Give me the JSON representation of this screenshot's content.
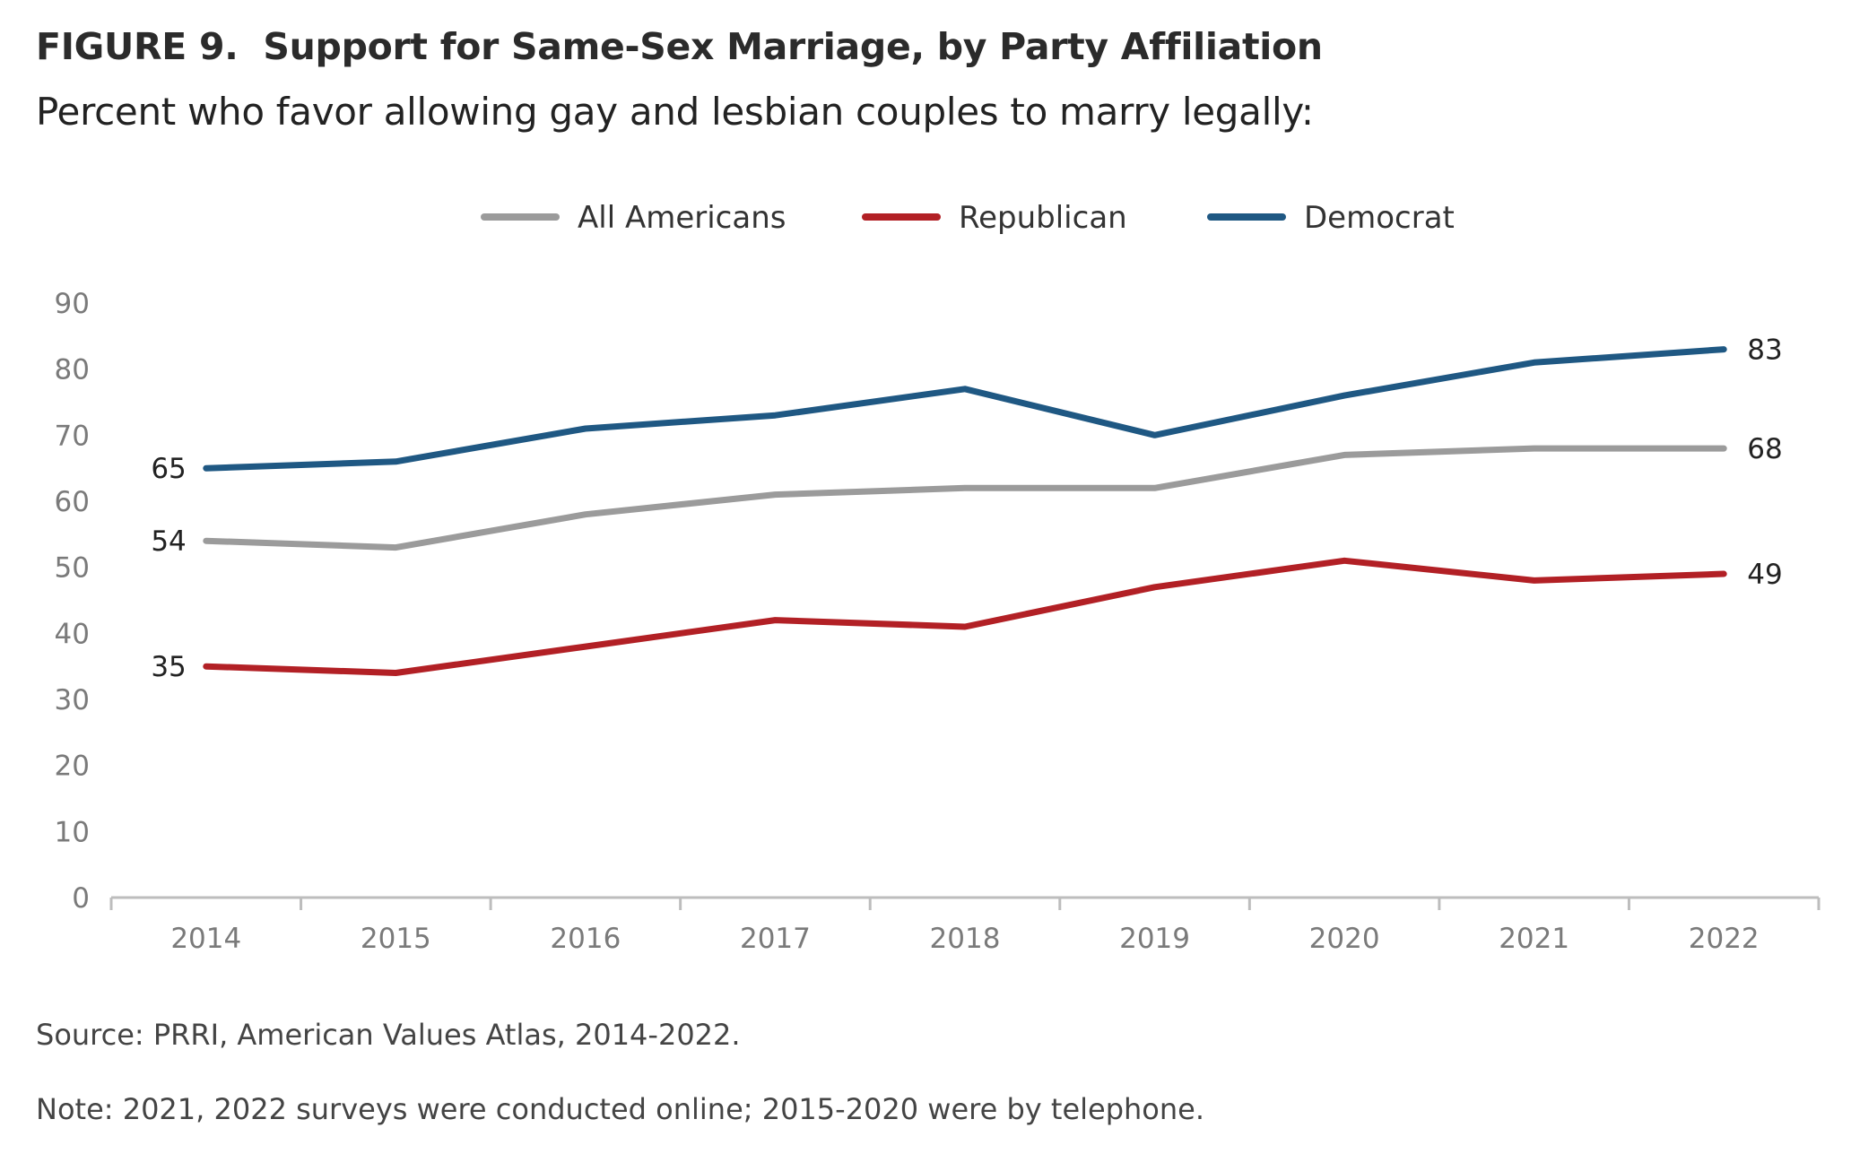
{
  "header": {
    "figure_label": "FIGURE 9.",
    "title": "Support for Same-Sex Marriage, by Party Affiliation",
    "subtitle": "Percent who favor allowing gay and lesbian couples to marry legally:"
  },
  "footer": {
    "source": "Source: PRRI, American Values Atlas, 2014-2022.",
    "note": "Note: 2021, 2022 surveys were conducted online; 2015-2020 were by telephone."
  },
  "chart_data": {
    "type": "line",
    "x": [
      "2014",
      "2015",
      "2016",
      "2017",
      "2018",
      "2019",
      "2020",
      "2021",
      "2022"
    ],
    "ylim": [
      0,
      90
    ],
    "yticks": [
      "0",
      "10",
      "20",
      "30",
      "40",
      "50",
      "60",
      "70",
      "80",
      "90"
    ],
    "grid": false,
    "legend_placement": "top-center",
    "series": [
      {
        "name": "All Americans",
        "color": "#9b9b9b",
        "values": [
          54,
          53,
          58,
          61,
          62,
          62,
          67,
          68,
          68
        ],
        "start_label": "54",
        "end_label": "68"
      },
      {
        "name": "Republican",
        "color": "#b22025",
        "values": [
          35,
          34,
          38,
          42,
          41,
          47,
          51,
          48,
          49
        ],
        "start_label": "35",
        "end_label": "49"
      },
      {
        "name": "Democrat",
        "color": "#1f5883",
        "values": [
          65,
          66,
          71,
          73,
          77,
          70,
          76,
          81,
          83
        ],
        "start_label": "65",
        "end_label": "83"
      }
    ]
  }
}
